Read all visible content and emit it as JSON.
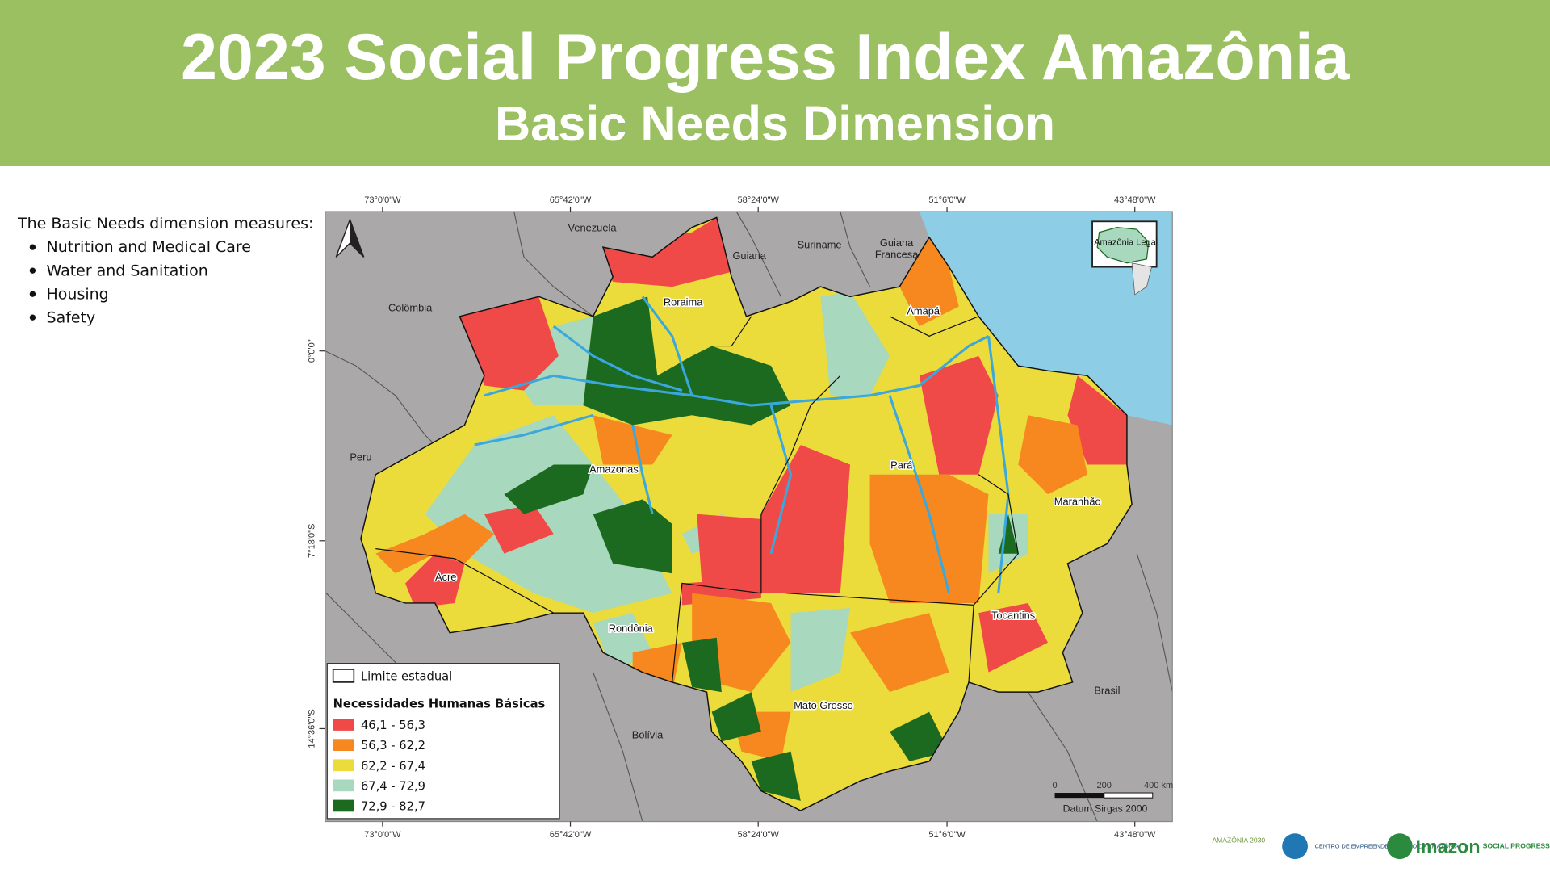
{
  "header": {
    "title": "2023 Social Progress Index Amazônia",
    "subtitle": "Basic Needs Dimension"
  },
  "description": {
    "intro": "The Basic Needs dimension measures:",
    "items": [
      "Nutrition and Medical Care",
      "Water and Sanitation",
      "Housing",
      "Safety"
    ]
  },
  "map": {
    "longitudes": [
      "73°0'0\"W",
      "65°42'0\"W",
      "58°24'0\"W",
      "51°6'0\"W",
      "43°48'0\"W"
    ],
    "latitudes": [
      "0°0'0\"",
      "7°18'0\"S",
      "14°36'0\"S"
    ],
    "countries": [
      "Venezuela",
      "Guiana",
      "Suriname",
      "Guiana Francesa",
      "Colômbia",
      "Peru",
      "Bolívia",
      "Brasil"
    ],
    "states": [
      "Roraima",
      "Amapá",
      "Amazonas",
      "Pará",
      "Maranhão",
      "Acre",
      "Rondônia",
      "Tocantins",
      "Mato Grosso"
    ],
    "inset_label": "Amazônia Legal",
    "legend": {
      "boundary": "Limite estadual",
      "title": "Necessidades Humanas Básicas",
      "classes": [
        {
          "label": "46,1 - 56,3",
          "color": "#f04a48"
        },
        {
          "label": "56,3 - 62,2",
          "color": "#f7881f"
        },
        {
          "label": "62,2 - 67,4",
          "color": "#ebdc3c"
        },
        {
          "label": "67,4 - 72,9",
          "color": "#a8d8bd"
        },
        {
          "label": "72,9 - 82,7",
          "color": "#1b6a1f"
        }
      ]
    },
    "scale_labels": [
      "0",
      "200",
      "400 km"
    ],
    "datum": "Datum Sirgas 2000"
  },
  "logos": [
    "AMAZÔNIA 2030",
    "CENTRO DE EMPREENDEDORISMO DA AMAZÔNIA",
    "Imazon",
    "SOCIAL PROGRESS IMPERATIVE"
  ]
}
